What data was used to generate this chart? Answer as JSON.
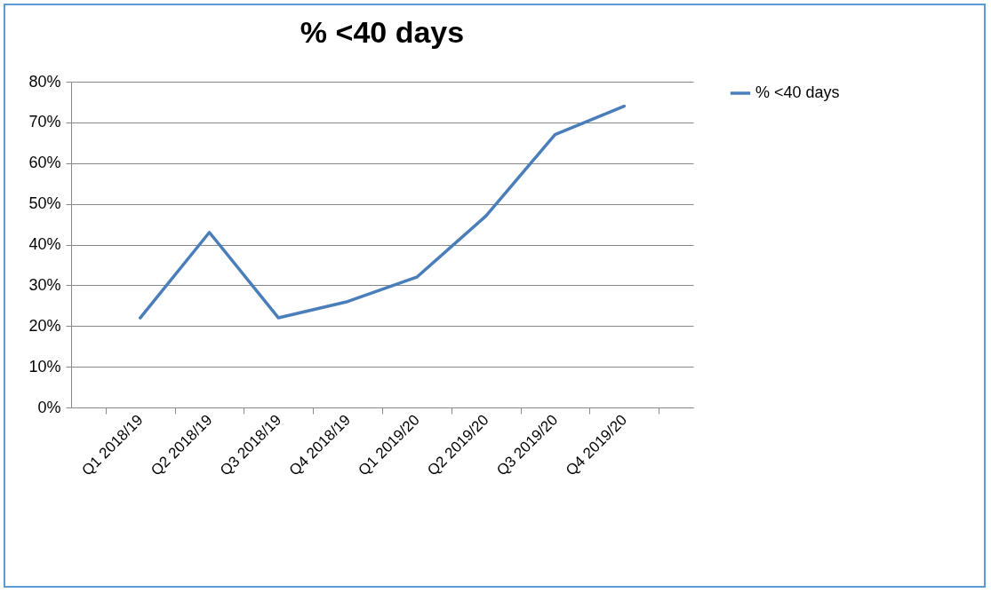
{
  "chart_data": {
    "type": "line",
    "title": "% <40 days",
    "categories": [
      "Q1 2018/19",
      "Q2 2018/19",
      "Q3 2018/19",
      "Q4 2018/19",
      "Q1 2019/20",
      "Q2 2019/20",
      "Q3 2019/20",
      "Q4 2019/20"
    ],
    "series": [
      {
        "name": "% <40 days",
        "color": "#4a7ebb",
        "values": [
          22,
          43,
          22,
          26,
          32,
          47,
          67,
          74
        ]
      }
    ],
    "ylim": [
      0,
      80
    ],
    "yticks": [
      {
        "value": 0,
        "label": "0%"
      },
      {
        "value": 10,
        "label": "10%"
      },
      {
        "value": 20,
        "label": "20%"
      },
      {
        "value": 30,
        "label": "30%"
      },
      {
        "value": 40,
        "label": "40%"
      },
      {
        "value": 50,
        "label": "50%"
      },
      {
        "value": 60,
        "label": "60%"
      },
      {
        "value": 70,
        "label": "70%"
      },
      {
        "value": 80,
        "label": "80%"
      }
    ],
    "grid": "y",
    "legend": "right",
    "marker": "none",
    "line_style": "solid"
  }
}
